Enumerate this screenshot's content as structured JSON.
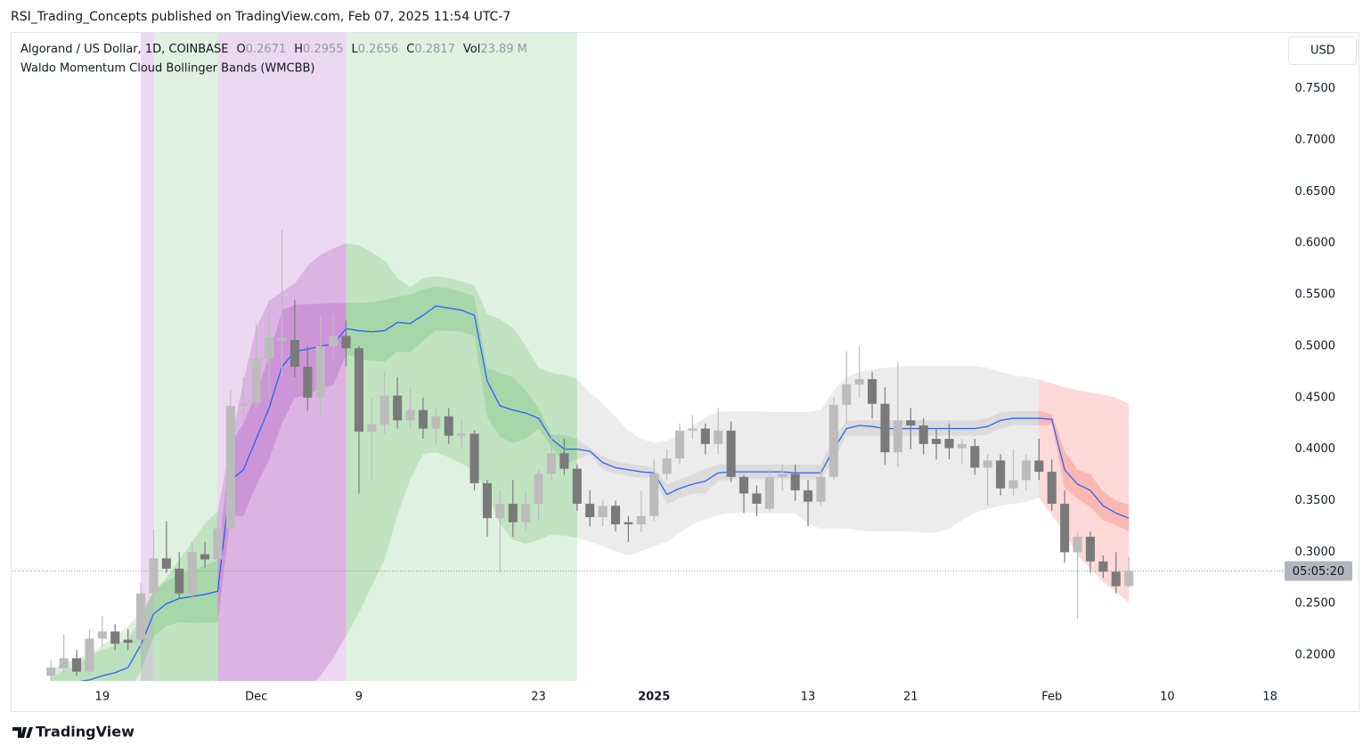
{
  "header": {
    "published": "RSI_Trading_Concepts published on TradingView.com, Feb 07, 2025 11:54 UTC-7",
    "brand": "TradingView"
  },
  "chart_data": {
    "type": "candlestick",
    "symbol": "Algorand / US Dollar, 1D, COINBASE",
    "legend_labels": [
      "O",
      "H",
      "L",
      "C",
      "Vol"
    ],
    "volume": "23.89 M",
    "currency": "USD",
    "countdown": "05:05:20",
    "up_color": "#bcbcbc",
    "down_color": "#7a7a7a",
    "x": [
      "2024-11-15",
      "2024-11-16",
      "2024-11-17",
      "2024-11-18",
      "2024-11-19",
      "2024-11-20",
      "2024-11-21",
      "2024-11-22",
      "2024-11-23",
      "2024-11-24",
      "2024-11-25",
      "2024-11-26",
      "2024-11-27",
      "2024-11-28",
      "2024-11-29",
      "2024-11-30",
      "2024-12-01",
      "2024-12-02",
      "2024-12-03",
      "2024-12-04",
      "2024-12-05",
      "2024-12-06",
      "2024-12-07",
      "2024-12-08",
      "2024-12-09",
      "2024-12-10",
      "2024-12-11",
      "2024-12-12",
      "2024-12-13",
      "2024-12-14",
      "2024-12-15",
      "2024-12-16",
      "2024-12-17",
      "2024-12-18",
      "2024-12-19",
      "2024-12-20",
      "2024-12-21",
      "2024-12-22",
      "2024-12-23",
      "2024-12-24",
      "2024-12-25",
      "2024-12-26",
      "2024-12-27",
      "2024-12-28",
      "2024-12-29",
      "2024-12-30",
      "2024-12-31",
      "2025-01-01",
      "2025-01-02",
      "2025-01-03",
      "2025-01-04",
      "2025-01-05",
      "2025-01-06",
      "2025-01-07",
      "2025-01-08",
      "2025-01-09",
      "2025-01-10",
      "2025-01-11",
      "2025-01-12",
      "2025-01-13",
      "2025-01-14",
      "2025-01-15",
      "2025-01-16",
      "2025-01-17",
      "2025-01-18",
      "2025-01-19",
      "2025-01-20",
      "2025-01-21",
      "2025-01-22",
      "2025-01-23",
      "2025-01-24",
      "2025-01-25",
      "2025-01-26",
      "2025-01-27",
      "2025-01-28",
      "2025-01-29",
      "2025-01-30",
      "2025-01-31",
      "2025-02-01",
      "2025-02-02",
      "2025-02-03",
      "2025-02-04",
      "2025-02-05",
      "2025-02-06",
      "2025-02-07"
    ],
    "open": [
      0.18,
      0.187,
      0.197,
      0.184,
      0.216,
      0.223,
      0.215,
      0.215,
      0.26,
      0.294,
      0.284,
      0.26,
      0.298,
      0.293,
      0.323,
      0.442,
      0.445,
      0.488,
      0.505,
      0.506,
      0.48,
      0.45,
      0.5,
      0.51,
      0.498,
      0.417,
      0.424,
      0.452,
      0.428,
      0.438,
      0.42,
      0.432,
      0.413,
      0.415,
      0.367,
      0.333,
      0.347,
      0.329,
      0.347,
      0.376,
      0.396,
      0.381,
      0.347,
      0.334,
      0.345,
      0.329,
      0.327,
      0.335,
      0.376,
      0.391,
      0.418,
      0.42,
      0.405,
      0.418,
      0.373,
      0.357,
      0.342,
      0.373,
      0.376,
      0.36,
      0.349,
      0.373,
      0.443,
      0.463,
      0.468,
      0.444,
      0.397,
      0.428,
      0.423,
      0.41,
      0.41,
      0.401,
      0.403,
      0.382,
      0.389,
      0.362,
      0.37,
      0.389,
      0.378,
      0.347,
      0.3,
      0.315,
      0.291,
      0.281,
      0.2671
    ],
    "high": [
      0.195,
      0.22,
      0.205,
      0.225,
      0.238,
      0.23,
      0.225,
      0.27,
      0.322,
      0.33,
      0.3,
      0.31,
      0.31,
      0.335,
      0.458,
      0.47,
      0.522,
      0.545,
      0.613,
      0.545,
      0.5,
      0.53,
      0.53,
      0.525,
      0.5,
      0.45,
      0.475,
      0.47,
      0.46,
      0.45,
      0.44,
      0.44,
      0.43,
      0.418,
      0.37,
      0.36,
      0.37,
      0.36,
      0.38,
      0.415,
      0.41,
      0.385,
      0.36,
      0.35,
      0.35,
      0.335,
      0.36,
      0.39,
      0.4,
      0.425,
      0.433,
      0.425,
      0.44,
      0.427,
      0.375,
      0.365,
      0.38,
      0.385,
      0.385,
      0.37,
      0.38,
      0.45,
      0.495,
      0.5,
      0.475,
      0.46,
      0.485,
      0.44,
      0.43,
      0.42,
      0.425,
      0.41,
      0.41,
      0.395,
      0.395,
      0.4,
      0.395,
      0.41,
      0.39,
      0.36,
      0.32,
      0.32,
      0.297,
      0.3,
      0.2955
    ],
    "low": [
      0.175,
      0.183,
      0.18,
      0.18,
      0.208,
      0.205,
      0.205,
      0.205,
      0.248,
      0.28,
      0.255,
      0.25,
      0.285,
      0.283,
      0.318,
      0.425,
      0.44,
      0.45,
      0.47,
      0.47,
      0.437,
      0.43,
      0.485,
      0.48,
      0.357,
      0.37,
      0.415,
      0.42,
      0.42,
      0.41,
      0.405,
      0.405,
      0.4,
      0.36,
      0.315,
      0.28,
      0.315,
      0.32,
      0.33,
      0.37,
      0.375,
      0.34,
      0.325,
      0.325,
      0.32,
      0.31,
      0.32,
      0.33,
      0.37,
      0.385,
      0.41,
      0.395,
      0.395,
      0.368,
      0.338,
      0.335,
      0.34,
      0.36,
      0.35,
      0.325,
      0.345,
      0.37,
      0.425,
      0.45,
      0.43,
      0.385,
      0.383,
      0.4,
      0.395,
      0.39,
      0.39,
      0.385,
      0.375,
      0.345,
      0.355,
      0.355,
      0.36,
      0.37,
      0.34,
      0.29,
      0.235,
      0.28,
      0.275,
      0.26,
      0.2656
    ],
    "close": [
      0.188,
      0.197,
      0.184,
      0.216,
      0.223,
      0.211,
      0.212,
      0.26,
      0.294,
      0.284,
      0.26,
      0.3,
      0.293,
      0.323,
      0.442,
      0.445,
      0.488,
      0.509,
      0.508,
      0.48,
      0.45,
      0.5,
      0.51,
      0.498,
      0.417,
      0.424,
      0.452,
      0.428,
      0.438,
      0.42,
      0.432,
      0.413,
      0.415,
      0.367,
      0.333,
      0.347,
      0.329,
      0.347,
      0.376,
      0.396,
      0.381,
      0.347,
      0.334,
      0.345,
      0.327,
      0.327,
      0.335,
      0.376,
      0.391,
      0.418,
      0.42,
      0.405,
      0.418,
      0.373,
      0.357,
      0.347,
      0.373,
      0.376,
      0.36,
      0.349,
      0.373,
      0.443,
      0.463,
      0.468,
      0.444,
      0.397,
      0.428,
      0.423,
      0.405,
      0.405,
      0.401,
      0.405,
      0.382,
      0.389,
      0.362,
      0.37,
      0.389,
      0.378,
      0.347,
      0.3,
      0.315,
      0.291,
      0.281,
      0.267,
      0.2817
    ],
    "indicator": {
      "name": "Waldo Momentum Cloud Bollinger Bands (WMCBB)",
      "basis_color": "#2962ff",
      "basis": [
        0.165,
        0.17,
        0.174,
        0.176,
        0.18,
        0.183,
        0.188,
        0.21,
        0.24,
        0.25,
        0.255,
        0.257,
        0.259,
        0.262,
        0.37,
        0.38,
        0.41,
        0.44,
        0.48,
        0.495,
        0.497,
        0.5,
        0.502,
        0.517,
        0.515,
        0.514,
        0.515,
        0.523,
        0.522,
        0.53,
        0.539,
        0.537,
        0.535,
        0.53,
        0.466,
        0.442,
        0.438,
        0.435,
        0.43,
        0.41,
        0.4,
        0.4,
        0.398,
        0.387,
        0.382,
        0.38,
        0.378,
        0.377,
        0.356,
        0.362,
        0.366,
        0.369,
        0.377,
        0.378,
        0.378,
        0.378,
        0.378,
        0.378,
        0.377,
        0.377,
        0.377,
        0.4,
        0.42,
        0.423,
        0.422,
        0.42,
        0.42,
        0.42,
        0.42,
        0.42,
        0.42,
        0.42,
        0.42,
        0.422,
        0.428,
        0.43,
        0.43,
        0.43,
        0.429,
        0.38,
        0.366,
        0.36,
        0.345,
        0.338,
        0.333
      ],
      "upper": [
        0.178,
        0.185,
        0.19,
        0.2,
        0.21,
        0.218,
        0.228,
        0.241,
        0.262,
        0.275,
        0.293,
        0.31,
        0.328,
        0.34,
        0.405,
        0.466,
        0.518,
        0.544,
        0.553,
        0.561,
        0.578,
        0.589,
        0.595,
        0.6,
        0.598,
        0.591,
        0.583,
        0.566,
        0.557,
        0.566,
        0.568,
        0.566,
        0.563,
        0.559,
        0.531,
        0.526,
        0.518,
        0.5,
        0.479,
        0.474,
        0.472,
        0.468,
        0.455,
        0.444,
        0.431,
        0.418,
        0.41,
        0.406,
        0.408,
        0.414,
        0.423,
        0.431,
        0.436,
        0.437,
        0.437,
        0.437,
        0.436,
        0.436,
        0.436,
        0.436,
        0.438,
        0.457,
        0.47,
        0.475,
        0.477,
        0.479,
        0.48,
        0.481,
        0.481,
        0.481,
        0.481,
        0.481,
        0.481,
        0.479,
        0.475,
        0.472,
        0.47,
        0.468,
        0.464,
        0.46,
        0.457,
        0.455,
        0.453,
        0.45,
        0.444
      ],
      "lower": [
        0.13,
        0.135,
        0.14,
        0.145,
        0.15,
        0.152,
        0.155,
        0.16,
        0.165,
        0.168,
        0.17,
        0.172,
        0.174,
        0.175,
        0.15,
        0.14,
        0.135,
        0.135,
        0.14,
        0.15,
        0.165,
        0.18,
        0.197,
        0.219,
        0.241,
        0.267,
        0.293,
        0.336,
        0.371,
        0.395,
        0.397,
        0.392,
        0.386,
        0.379,
        0.358,
        0.327,
        0.312,
        0.308,
        0.312,
        0.317,
        0.316,
        0.314,
        0.31,
        0.306,
        0.301,
        0.297,
        0.301,
        0.306,
        0.31,
        0.319,
        0.327,
        0.332,
        0.336,
        0.338,
        0.338,
        0.338,
        0.338,
        0.338,
        0.338,
        0.327,
        0.323,
        0.323,
        0.323,
        0.321,
        0.32,
        0.32,
        0.32,
        0.32,
        0.319,
        0.319,
        0.323,
        0.331,
        0.338,
        0.342,
        0.345,
        0.347,
        0.349,
        0.353,
        0.336,
        0.319,
        0.297,
        0.284,
        0.271,
        0.262,
        0.251
      ],
      "inner_upper": [
        0.185,
        0.192,
        0.197,
        0.2,
        0.205,
        0.21,
        0.215,
        0.235,
        0.262,
        0.272,
        0.278,
        0.283,
        0.287,
        0.292,
        0.405,
        0.425,
        0.455,
        0.49,
        0.535,
        0.54,
        0.541,
        0.541,
        0.542,
        0.542,
        0.542,
        0.543,
        0.545,
        0.548,
        0.55,
        0.555,
        0.558,
        0.556,
        0.553,
        0.548,
        0.479,
        0.474,
        0.47,
        0.457,
        0.44,
        0.414,
        0.414,
        0.41,
        0.401,
        0.393,
        0.388,
        0.386,
        0.384,
        0.382,
        0.366,
        0.371,
        0.375,
        0.381,
        0.385,
        0.385,
        0.385,
        0.385,
        0.385,
        0.385,
        0.385,
        0.385,
        0.385,
        0.411,
        0.427,
        0.428,
        0.428,
        0.428,
        0.428,
        0.428,
        0.428,
        0.428,
        0.428,
        0.428,
        0.428,
        0.43,
        0.436,
        0.437,
        0.437,
        0.437,
        0.434,
        0.398,
        0.38,
        0.376,
        0.359,
        0.35,
        0.346
      ],
      "inner_lower": [
        0.145,
        0.148,
        0.151,
        0.152,
        0.155,
        0.156,
        0.161,
        0.185,
        0.218,
        0.228,
        0.232,
        0.231,
        0.231,
        0.232,
        0.335,
        0.335,
        0.365,
        0.39,
        0.425,
        0.45,
        0.453,
        0.459,
        0.462,
        0.492,
        0.488,
        0.486,
        0.485,
        0.495,
        0.494,
        0.505,
        0.515,
        0.515,
        0.514,
        0.51,
        0.431,
        0.412,
        0.406,
        0.41,
        0.42,
        0.402,
        0.386,
        0.39,
        0.395,
        0.38,
        0.376,
        0.374,
        0.372,
        0.372,
        0.346,
        0.353,
        0.357,
        0.357,
        0.369,
        0.371,
        0.371,
        0.371,
        0.371,
        0.371,
        0.371,
        0.371,
        0.371,
        0.389,
        0.413,
        0.413,
        0.413,
        0.413,
        0.413,
        0.413,
        0.413,
        0.413,
        0.413,
        0.413,
        0.413,
        0.414,
        0.42,
        0.423,
        0.423,
        0.423,
        0.424,
        0.362,
        0.352,
        0.344,
        0.331,
        0.326,
        0.32
      ],
      "cloud_segments": [
        {
          "start": "2024-11-15",
          "end": "2024-11-28",
          "color": "#4caf50"
        },
        {
          "start": "2024-11-28",
          "end": "2024-12-08",
          "color": "#9c27b0"
        },
        {
          "start": "2024-12-08",
          "end": "2024-12-26",
          "color": "#4caf50"
        },
        {
          "start": "2024-12-26",
          "end": "2025-01-31",
          "color": "#9e9e9e"
        },
        {
          "start": "2025-01-31",
          "end": "2025-02-07",
          "color": "#f44336"
        }
      ],
      "background_segments": [
        {
          "start": "2024-11-22",
          "end": "2024-11-23",
          "color": "#9c27b0"
        },
        {
          "start": "2024-11-23",
          "end": "2024-11-28",
          "color": "#4caf50"
        },
        {
          "start": "2024-11-28",
          "end": "2024-12-08",
          "color": "#9c27b0"
        },
        {
          "start": "2024-12-08",
          "end": "2024-12-26",
          "color": "#4caf50"
        }
      ]
    },
    "xlim": [
      "2024-11-12",
      "2025-02-19"
    ],
    "xticks": [
      {
        "value": "2024-11-19",
        "label": "19"
      },
      {
        "value": "2024-12-01",
        "label": "Dec"
      },
      {
        "value": "2024-12-09",
        "label": "9"
      },
      {
        "value": "2024-12-23",
        "label": "23"
      },
      {
        "value": "2025-01-01",
        "label": "2025"
      },
      {
        "value": "2025-01-13",
        "label": "13"
      },
      {
        "value": "2025-01-21",
        "label": "21"
      },
      {
        "value": "2025-02-01",
        "label": "Feb"
      },
      {
        "value": "2025-02-10",
        "label": "10"
      },
      {
        "value": "2025-02-18",
        "label": "18"
      }
    ],
    "ylim": [
      0.175,
      0.805
    ],
    "yticks": [
      {
        "value": 0.2,
        "label": "0.2000"
      },
      {
        "value": 0.25,
        "label": "0.2500"
      },
      {
        "value": 0.3,
        "label": "0.3000"
      },
      {
        "value": 0.35,
        "label": "0.3500"
      },
      {
        "value": 0.4,
        "label": "0.4000"
      },
      {
        "value": 0.45,
        "label": "0.4500"
      },
      {
        "value": 0.5,
        "label": "0.5000"
      },
      {
        "value": 0.55,
        "label": "0.5500"
      },
      {
        "value": 0.6,
        "label": "0.6000"
      },
      {
        "value": 0.65,
        "label": "0.6500"
      },
      {
        "value": 0.7,
        "label": "0.7000"
      },
      {
        "value": 0.75,
        "label": "0.7500"
      }
    ]
  }
}
